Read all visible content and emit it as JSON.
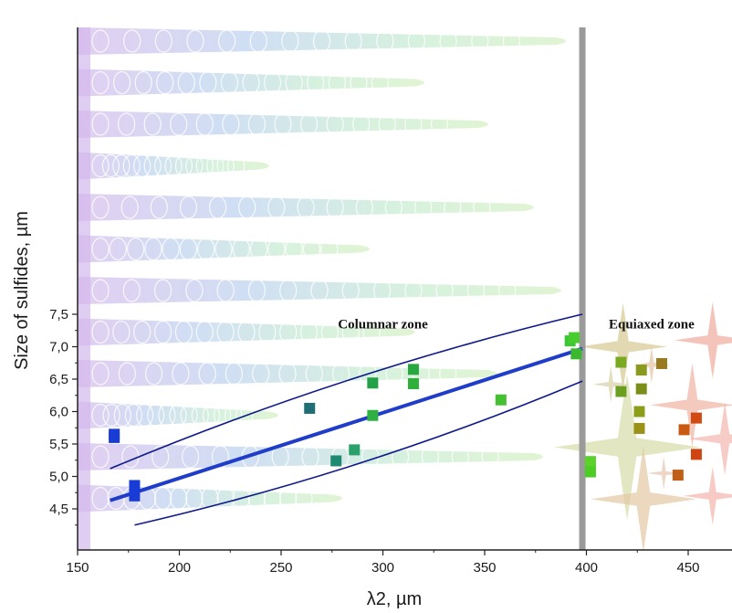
{
  "chart_data": {
    "type": "scatter",
    "title": "",
    "xlabel": "λ2, µm",
    "ylabel": "Size of sulfides, µm",
    "xlim": [
      150,
      470
    ],
    "ylim": [
      4.25,
      7.5
    ],
    "x_ticks": [
      "150",
      "200",
      "250",
      "300",
      "350",
      "400",
      "450"
    ],
    "y_ticks": [
      "4,5",
      "5,0",
      "5,5",
      "6,0",
      "6,5",
      "7,0",
      "7,5"
    ],
    "zone_divider_x": 398,
    "annotations": [
      {
        "text": "Columnar zone",
        "x": 300,
        "y": 7.35
      },
      {
        "text": "Equiaxed zone",
        "x": 432,
        "y": 7.35
      }
    ],
    "series": [
      {
        "points": [
          {
            "x": 168,
            "y": 5.65,
            "color": "#1a3cd6"
          },
          {
            "x": 168,
            "y": 5.6,
            "color": "#1a3cd6"
          },
          {
            "x": 178,
            "y": 4.86,
            "color": "#1a3cd6"
          },
          {
            "x": 178,
            "y": 4.7,
            "color": "#1a3cd6"
          },
          {
            "x": 264,
            "y": 6.05,
            "color": "#1f6e76"
          },
          {
            "x": 277,
            "y": 5.24,
            "color": "#1f8a72"
          },
          {
            "x": 286,
            "y": 5.41,
            "color": "#2aa06a"
          },
          {
            "x": 295,
            "y": 6.44,
            "color": "#24a048"
          },
          {
            "x": 295,
            "y": 5.94,
            "color": "#2fb043"
          },
          {
            "x": 315,
            "y": 6.65,
            "color": "#28a83e"
          },
          {
            "x": 315,
            "y": 6.43,
            "color": "#2fb03c"
          },
          {
            "x": 358,
            "y": 6.18,
            "color": "#44c030"
          },
          {
            "x": 392,
            "y": 7.09,
            "color": "#3ac832"
          },
          {
            "x": 394,
            "y": 7.14,
            "color": "#46cc2c"
          },
          {
            "x": 395,
            "y": 6.89,
            "color": "#3ab82e"
          },
          {
            "x": 402,
            "y": 5.23,
            "color": "#5ad228"
          },
          {
            "x": 402,
            "y": 5.07,
            "color": "#4ecc26"
          },
          {
            "x": 417,
            "y": 6.76,
            "color": "#7aaa22"
          },
          {
            "x": 417,
            "y": 6.31,
            "color": "#6c9e20"
          },
          {
            "x": 427,
            "y": 6.64,
            "color": "#8a9a1c"
          },
          {
            "x": 427,
            "y": 6.35,
            "color": "#7a8e1a"
          },
          {
            "x": 426,
            "y": 6.0,
            "color": "#8c9e18"
          },
          {
            "x": 426,
            "y": 5.74,
            "color": "#9a9216"
          },
          {
            "x": 437,
            "y": 6.74,
            "color": "#9a7a20"
          },
          {
            "x": 445,
            "y": 5.02,
            "color": "#c06018"
          },
          {
            "x": 448,
            "y": 5.72,
            "color": "#c85a12"
          },
          {
            "x": 454,
            "y": 5.9,
            "color": "#d04a12"
          },
          {
            "x": 454,
            "y": 5.34,
            "color": "#d04412"
          }
        ]
      }
    ],
    "fit_line": {
      "x": [
        166,
        398
      ],
      "y": [
        4.63,
        6.97
      ],
      "color": "#1f3dc8"
    },
    "confidence_band": {
      "upper": {
        "x": [
          166,
          398
        ],
        "y": [
          5.12,
          7.5
        ]
      },
      "lower": {
        "x": [
          178,
          398
        ],
        "y": [
          4.25,
          6.47
        ]
      },
      "color": "#101a8a"
    },
    "divider_color": "#9a9a9a"
  }
}
